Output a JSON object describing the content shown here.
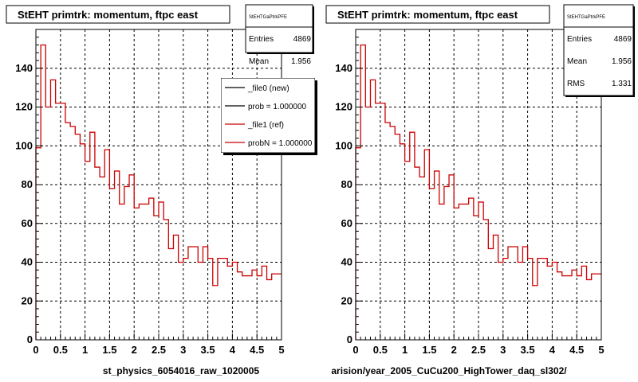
{
  "chart_data": [
    {
      "type": "histogram",
      "title": "StEHT primtrk: momentum, ftpc east",
      "xlabel": "st_physics_6054016_raw_1020005",
      "xlim": [
        0,
        5
      ],
      "ylim": [
        0,
        160
      ],
      "xticks": [
        "0",
        "0.5",
        "1",
        "1.5",
        "2",
        "2.5",
        "3",
        "3.5",
        "4",
        "4.5",
        "5"
      ],
      "yticks": [
        "0",
        "20",
        "40",
        "60",
        "80",
        "100",
        "120",
        "140"
      ],
      "grid": true,
      "bin_width": 0.1,
      "stats": {
        "name": "StEHTGaPtrkPFE",
        "rows": [
          {
            "label": "Entries",
            "value": "4869"
          },
          {
            "label": "Mean",
            "value": "1.956"
          }
        ]
      },
      "legend": {
        "placement": "top-right",
        "entries": [
          {
            "label": "_file0 (new)",
            "color": "#000000"
          },
          {
            "label": "prob = 1.000000",
            "color": "#000000"
          },
          {
            "label": "_file1 (ref)",
            "color": "#cc0000"
          },
          {
            "label": "probN = 1.000000",
            "color": "#cc0000"
          }
        ]
      },
      "series": [
        {
          "color": "#cc0000",
          "values": [
            99,
            152,
            120,
            134,
            122,
            122,
            112,
            110,
            106,
            101,
            92,
            107,
            89,
            84,
            98,
            78,
            87,
            70,
            79,
            85,
            68,
            70,
            70,
            73,
            64,
            71,
            62,
            47,
            54,
            40,
            42,
            48,
            48,
            40,
            48,
            42,
            28,
            42,
            42,
            38,
            40,
            35,
            33,
            33,
            36,
            33,
            38,
            31,
            34,
            34
          ]
        }
      ]
    },
    {
      "type": "histogram",
      "title": "StEHT primtrk: momentum, ftpc east",
      "xlabel": "arision/year_2005_CuCu200_HighTower_daq_sl302/",
      "xlim": [
        0,
        5
      ],
      "ylim": [
        0,
        160
      ],
      "xticks": [
        "0",
        "0.5",
        "1",
        "1.5",
        "2",
        "2.5",
        "3",
        "3.5",
        "4",
        "4.5",
        "5"
      ],
      "yticks": [
        "0",
        "20",
        "40",
        "60",
        "80",
        "100",
        "120",
        "140"
      ],
      "grid": true,
      "bin_width": 0.1,
      "stats": {
        "name": "StEHTGaPtrkPFE",
        "rows": [
          {
            "label": "Entries",
            "value": "4869"
          },
          {
            "label": "Mean",
            "value": "1.956"
          },
          {
            "label": "RMS",
            "value": "1.331"
          }
        ]
      },
      "series": [
        {
          "color": "#cc0000",
          "values": [
            99,
            152,
            120,
            134,
            122,
            122,
            112,
            110,
            106,
            101,
            92,
            107,
            89,
            84,
            98,
            78,
            87,
            70,
            79,
            85,
            68,
            70,
            70,
            73,
            64,
            71,
            62,
            47,
            54,
            40,
            42,
            48,
            48,
            40,
            48,
            42,
            28,
            42,
            42,
            38,
            40,
            35,
            33,
            33,
            36,
            33,
            38,
            31,
            34,
            34
          ]
        }
      ]
    }
  ]
}
